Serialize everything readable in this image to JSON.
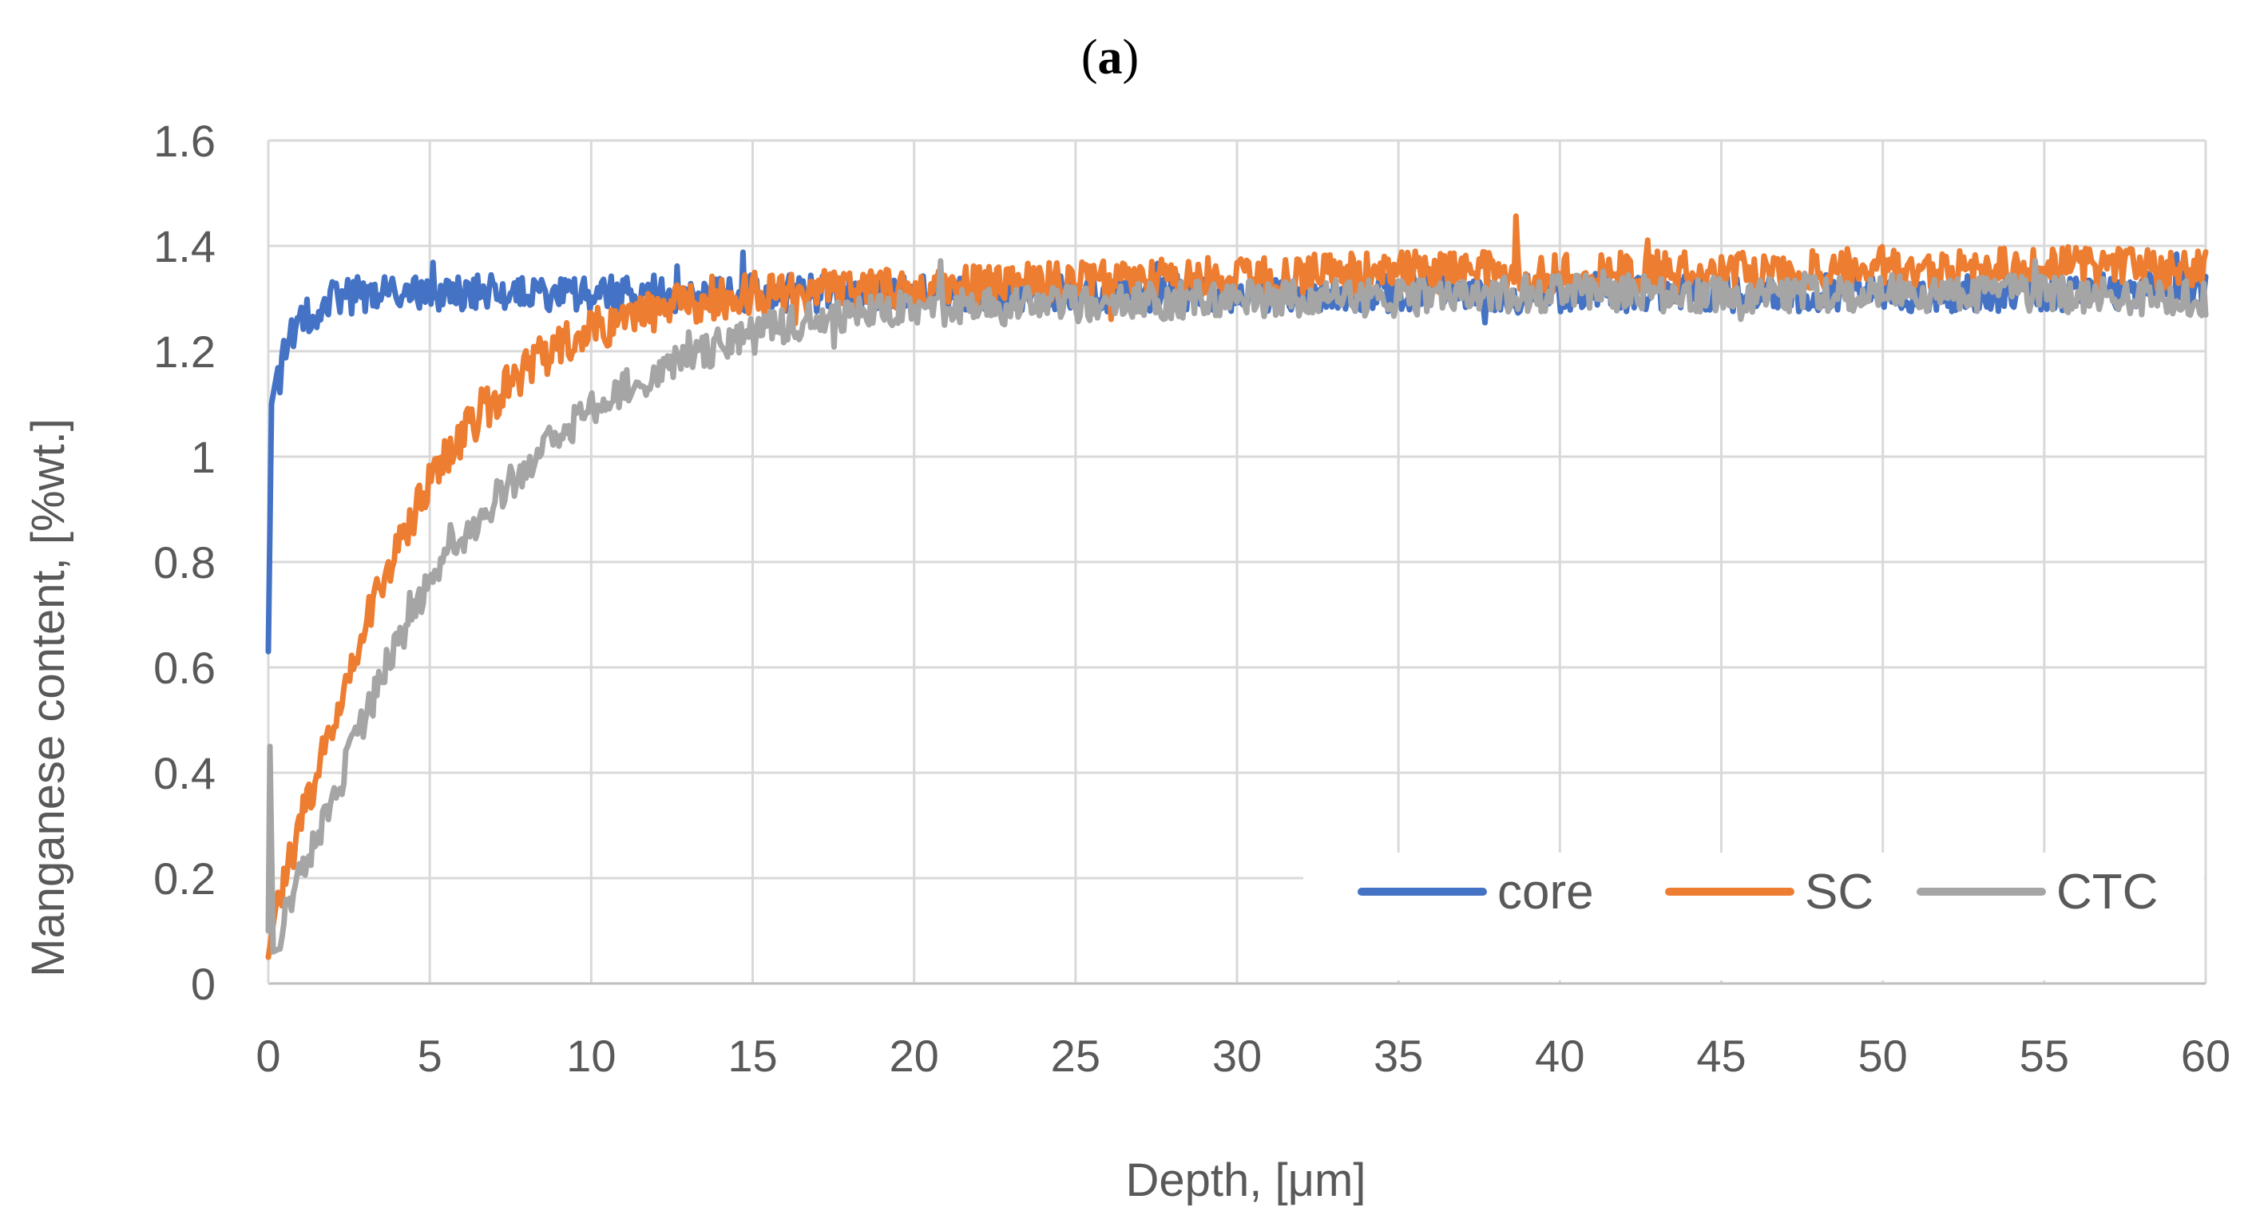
{
  "chart_data": {
    "type": "line",
    "panel_label": "(a)",
    "panel_letter": "a",
    "title": "",
    "xlabel": "Depth, [μm]",
    "ylabel": "Manganese content, [%wt.]",
    "xlim": [
      0,
      60
    ],
    "ylim": [
      0,
      1.6
    ],
    "x_ticks": [
      0,
      5,
      10,
      15,
      20,
      25,
      30,
      35,
      40,
      45,
      50,
      55,
      60
    ],
    "y_ticks": [
      0,
      0.2,
      0.4,
      0.6,
      0.8,
      1,
      1.2,
      1.4,
      1.6
    ],
    "x_tick_labels": [
      "0",
      "5",
      "10",
      "15",
      "20",
      "25",
      "30",
      "35",
      "40",
      "45",
      "50",
      "55",
      "60"
    ],
    "y_tick_labels": [
      "0",
      "0.2",
      "0.4",
      "0.6",
      "0.8",
      "1",
      "1.2",
      "1.4",
      "1.6"
    ],
    "grid": true,
    "legend_position": "bottom-right",
    "series": [
      {
        "name": "core",
        "color": "#4472C4",
        "x": [
          0,
          0.1,
          0.3,
          0.6,
          1,
          1.5,
          2,
          3,
          4,
          5,
          6,
          8,
          10,
          12,
          14,
          16,
          18,
          20,
          25,
          30,
          35,
          40,
          45,
          50,
          55,
          60
        ],
        "y": [
          0.63,
          1.1,
          1.16,
          1.22,
          1.26,
          1.28,
          1.3,
          1.31,
          1.31,
          1.31,
          1.31,
          1.31,
          1.31,
          1.31,
          1.31,
          1.31,
          1.31,
          1.31,
          1.31,
          1.31,
          1.31,
          1.31,
          1.31,
          1.31,
          1.31,
          1.32
        ],
        "noise_amplitude": 0.035
      },
      {
        "name": "SC",
        "color": "#ED7D31",
        "x": [
          0,
          0.5,
          1,
          2,
          3,
          4,
          5,
          6,
          7,
          8,
          9,
          10,
          11,
          12,
          13,
          14,
          15,
          16,
          18,
          20,
          25,
          30,
          35,
          40,
          45,
          50,
          55,
          60
        ],
        "y": [
          0.05,
          0.2,
          0.3,
          0.5,
          0.68,
          0.82,
          0.95,
          1.04,
          1.11,
          1.17,
          1.21,
          1.24,
          1.26,
          1.28,
          1.29,
          1.3,
          1.31,
          1.31,
          1.32,
          1.32,
          1.33,
          1.34,
          1.35,
          1.35,
          1.35,
          1.36,
          1.36,
          1.35
        ],
        "noise_amplitude": 0.04
      },
      {
        "name": "CTC",
        "color": "#A5A5A5",
        "x": [
          0,
          0.05,
          0.15,
          0.5,
          1,
          2,
          3,
          4,
          5,
          6,
          7,
          8,
          9,
          10,
          11,
          12,
          13,
          14,
          15,
          16,
          18,
          20,
          25,
          30,
          35,
          40,
          45,
          50,
          55,
          60
        ],
        "y": [
          0.1,
          0.45,
          0.06,
          0.12,
          0.2,
          0.35,
          0.5,
          0.65,
          0.76,
          0.85,
          0.92,
          0.98,
          1.04,
          1.09,
          1.13,
          1.16,
          1.19,
          1.21,
          1.23,
          1.25,
          1.27,
          1.28,
          1.29,
          1.3,
          1.3,
          1.31,
          1.31,
          1.31,
          1.31,
          1.3
        ],
        "noise_amplitude": 0.035
      }
    ]
  }
}
